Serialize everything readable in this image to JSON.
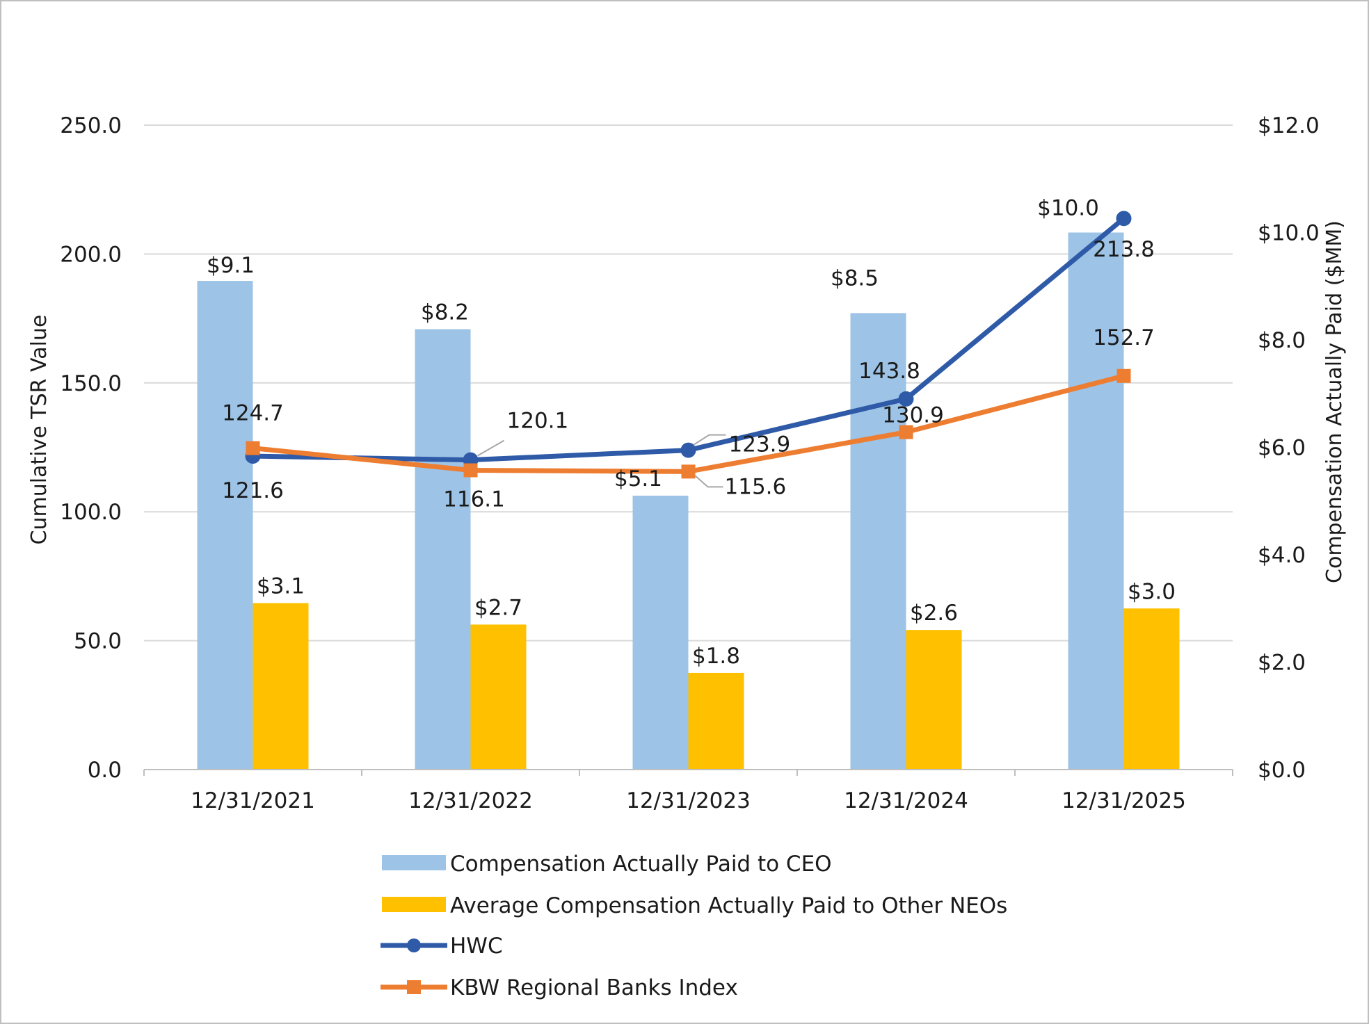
{
  "colors": {
    "ceo_bar": "#9dc3e6",
    "neo_bar": "#ffc000",
    "hwc_line": "#2e5aa7",
    "kbw_line": "#ed7d31",
    "grid": "#d9d9d9",
    "leader": "#a6a6a6"
  },
  "chart_data": {
    "type": "bar+line",
    "categories": [
      "12/31/2021",
      "12/31/2022",
      "12/31/2023",
      "12/31/2024",
      "12/31/2025"
    ],
    "y_left": {
      "title": "Cumulative TSR Value",
      "range": [
        0,
        250
      ],
      "ticks": [
        "0.0",
        "50.0",
        "100.0",
        "150.0",
        "200.0",
        "250.0"
      ]
    },
    "y_right": {
      "title": "Compensation Actually Paid ($MM)",
      "range": [
        0,
        12
      ],
      "ticks": [
        "$0.0",
        "$2.0",
        "$4.0",
        "$6.0",
        "$8.0",
        "$10.0",
        "$12.0"
      ]
    },
    "gridlines": true,
    "legend_position": "bottom",
    "series": [
      {
        "name": "Compensation Actually Paid to CEO",
        "kind": "bar",
        "axis": "right",
        "values": [
          9.1,
          8.2,
          5.1,
          8.5,
          10.0
        ],
        "labels": [
          "$9.1",
          "$8.2",
          "$5.1",
          "$8.5",
          "$10.0"
        ]
      },
      {
        "name": "Average Compensation Actually Paid to Other NEOs",
        "kind": "bar",
        "axis": "right",
        "values": [
          3.1,
          2.7,
          1.8,
          2.6,
          3.0
        ],
        "labels": [
          "$3.1",
          "$2.7",
          "$1.8",
          "$2.6",
          "$3.0"
        ]
      },
      {
        "name": "HWC",
        "kind": "line",
        "marker": "circle",
        "axis": "left",
        "values": [
          121.6,
          120.1,
          123.9,
          143.8,
          213.8
        ],
        "labels": [
          "121.6",
          "120.1",
          "123.9",
          "143.8",
          "213.8"
        ]
      },
      {
        "name": "KBW Regional Banks Index",
        "kind": "line",
        "marker": "square",
        "axis": "left",
        "values": [
          124.7,
          116.1,
          115.6,
          130.9,
          152.7
        ],
        "labels": [
          "124.7",
          "116.1",
          "115.6",
          "130.9",
          "152.7"
        ]
      }
    ]
  }
}
